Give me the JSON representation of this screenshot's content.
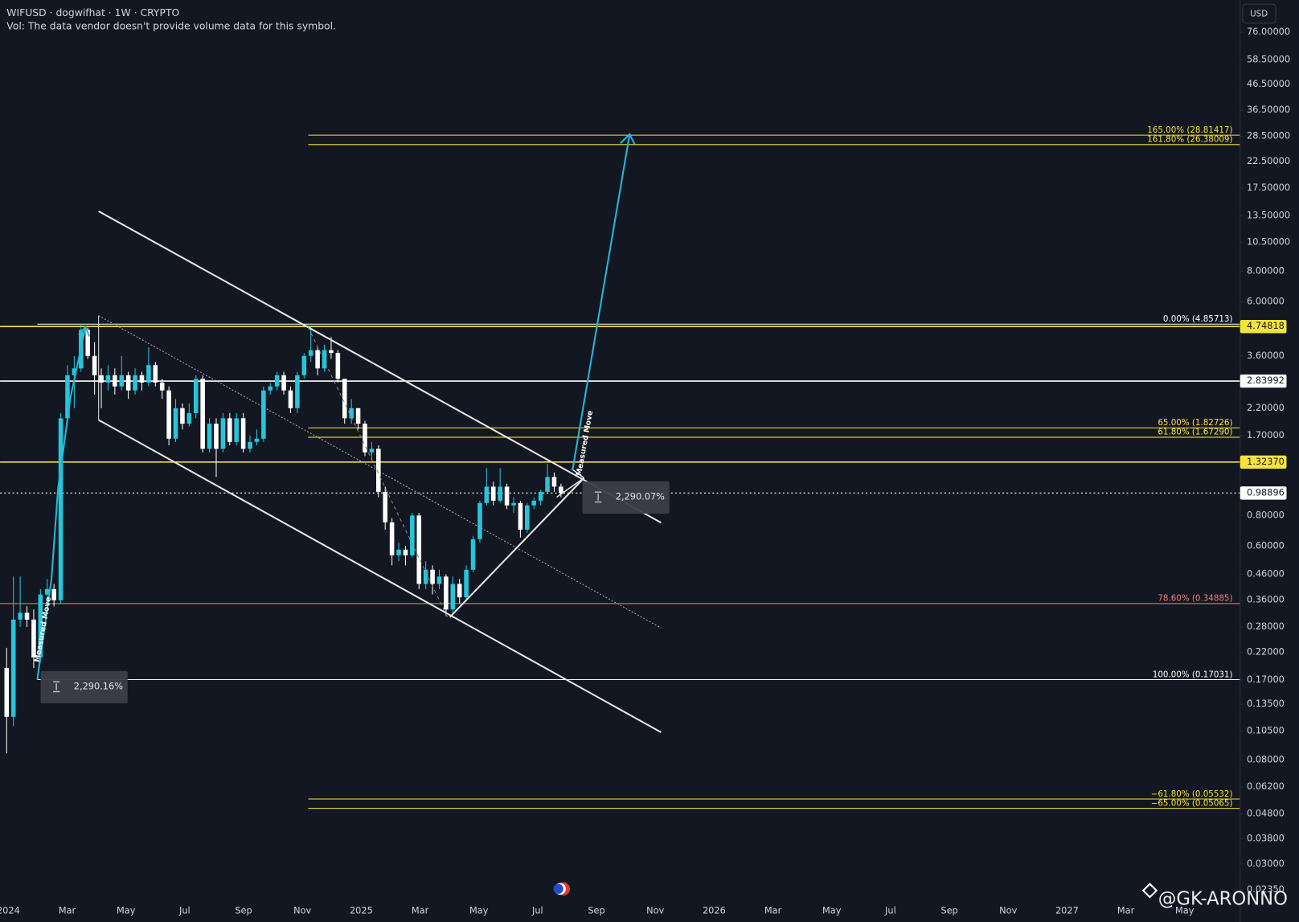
{
  "header": {
    "symbol_line": "WIFUSD · dogwifhat · 1W · CRYPTO",
    "volume_note": "Vol: The data vendor doesn't provide volume data for this symbol.",
    "currency": "USD",
    "watermark": "@GK-ARONNO"
  },
  "chart_data": {
    "type": "candlestick",
    "log_scale": true,
    "up_color": "#26c6da",
    "down_color": "#ffffff",
    "open": [
      0.19,
      0.12,
      0.3,
      0.32,
      0.3,
      0.21,
      0.38,
      0.4,
      0.36,
      2.0,
      3.0,
      3.2,
      4.6,
      3.6,
      3.0,
      2.8,
      3.0,
      2.7,
      3.0,
      2.6,
      3.0,
      2.8,
      3.3,
      2.8,
      2.6,
      1.65,
      2.2,
      1.9,
      2.1,
      2.9,
      1.5,
      1.9,
      1.5,
      2.0,
      1.6,
      2.0,
      1.5,
      1.6,
      1.65,
      2.6,
      2.7,
      3.0,
      2.6,
      2.2,
      3.0,
      3.6,
      3.8,
      3.2,
      3.8,
      3.7,
      2.9,
      2.0,
      2.2,
      1.9,
      1.45,
      1.5,
      1.0,
      0.75,
      0.55,
      0.58,
      0.55,
      0.8,
      0.42,
      0.48,
      0.42,
      0.45,
      0.33,
      0.42,
      0.37,
      0.48,
      0.64,
      0.9,
      1.05,
      0.92,
      1.05,
      0.88,
      0.9,
      0.7,
      0.88,
      0.92,
      1.0,
      1.15,
      1.05
    ],
    "high": [
      0.23,
      0.45,
      0.45,
      0.34,
      0.33,
      0.4,
      0.44,
      0.42,
      2.1,
      3.3,
      3.6,
      4.86,
      4.7,
      4.1,
      3.2,
      3.3,
      3.2,
      3.6,
      3.1,
      3.2,
      3.1,
      3.9,
      3.4,
      2.9,
      2.7,
      2.4,
      2.3,
      2.3,
      3.0,
      3.0,
      2.0,
      2.0,
      2.1,
      2.1,
      2.1,
      2.1,
      1.7,
      1.8,
      2.7,
      2.8,
      3.1,
      3.1,
      2.7,
      3.1,
      3.7,
      4.75,
      3.9,
      4.0,
      4.3,
      3.8,
      2.9,
      2.4,
      2.2,
      1.95,
      1.6,
      1.55,
      1.05,
      0.78,
      0.62,
      0.6,
      0.82,
      0.82,
      0.52,
      0.5,
      0.48,
      0.46,
      0.45,
      0.44,
      0.5,
      0.66,
      0.92,
      1.25,
      1.1,
      1.25,
      1.08,
      0.95,
      0.92,
      0.9,
      0.95,
      1.02,
      1.3,
      1.2,
      1.08
    ],
    "low": [
      0.085,
      0.11,
      0.28,
      0.28,
      0.19,
      0.2,
      0.36,
      0.34,
      0.35,
      1.9,
      2.2,
      3.1,
      3.5,
      2.5,
      2.2,
      2.6,
      2.5,
      2.6,
      2.4,
      2.5,
      2.6,
      2.7,
      2.7,
      2.4,
      1.55,
      1.6,
      1.8,
      1.85,
      2.0,
      1.45,
      1.45,
      1.15,
      1.45,
      1.55,
      1.55,
      1.45,
      1.45,
      1.55,
      1.6,
      2.5,
      2.6,
      2.5,
      2.1,
      2.1,
      2.9,
      3.4,
      3.0,
      3.1,
      3.5,
      2.8,
      1.9,
      1.9,
      1.8,
      1.4,
      1.35,
      0.95,
      0.7,
      0.5,
      0.52,
      0.5,
      0.54,
      0.4,
      0.4,
      0.38,
      0.4,
      0.31,
      0.32,
      0.35,
      0.36,
      0.47,
      0.62,
      0.88,
      0.88,
      0.9,
      0.85,
      0.82,
      0.65,
      0.68,
      0.85,
      0.88,
      0.98,
      1.0,
      0.95
    ],
    "close": [
      0.12,
      0.3,
      0.32,
      0.3,
      0.21,
      0.38,
      0.4,
      0.36,
      2.0,
      3.0,
      3.2,
      4.6,
      3.6,
      3.0,
      2.8,
      3.0,
      2.7,
      3.0,
      2.6,
      3.0,
      2.8,
      3.3,
      2.8,
      2.6,
      1.65,
      2.2,
      1.9,
      2.1,
      2.9,
      1.5,
      1.9,
      1.5,
      2.0,
      1.6,
      2.0,
      1.5,
      1.6,
      1.65,
      2.6,
      2.7,
      3.0,
      2.6,
      2.2,
      3.0,
      3.6,
      3.8,
      3.2,
      3.8,
      3.7,
      2.9,
      2.0,
      2.2,
      1.9,
      1.45,
      1.5,
      1.0,
      0.75,
      0.55,
      0.58,
      0.55,
      0.8,
      0.42,
      0.48,
      0.42,
      0.45,
      0.33,
      0.42,
      0.37,
      0.48,
      0.64,
      0.9,
      1.05,
      0.92,
      1.05,
      0.88,
      0.9,
      0.7,
      0.88,
      0.92,
      1.0,
      1.15,
      1.05,
      0.99
    ],
    "ylim": [
      0.0216,
      103
    ],
    "yticks": [
      {
        "value": 76,
        "label": "76.00000"
      },
      {
        "value": 58.5,
        "label": "58.50000"
      },
      {
        "value": 46.5,
        "label": "46.50000"
      },
      {
        "value": 36.5,
        "label": "36.50000"
      },
      {
        "value": 28.5,
        "label": "28.50000"
      },
      {
        "value": 22.5,
        "label": "22.50000"
      },
      {
        "value": 17.5,
        "label": "17.50000"
      },
      {
        "value": 13.5,
        "label": "13.50000"
      },
      {
        "value": 10.5,
        "label": "10.50000"
      },
      {
        "value": 8,
        "label": "8.00000"
      },
      {
        "value": 6,
        "label": "6.00000"
      },
      {
        "value": 3.6,
        "label": "3.60000"
      },
      {
        "value": 2.2,
        "label": "2.20000"
      },
      {
        "value": 1.7,
        "label": "1.70000"
      },
      {
        "value": 0.8,
        "label": "0.80000"
      },
      {
        "value": 0.6,
        "label": "0.60000"
      },
      {
        "value": 0.46,
        "label": "0.46000"
      },
      {
        "value": 0.36,
        "label": "0.36000"
      },
      {
        "value": 0.28,
        "label": "0.28000"
      },
      {
        "value": 0.22,
        "label": "0.22000"
      },
      {
        "value": 0.17,
        "label": "0.17000"
      },
      {
        "value": 0.135,
        "label": "0.13500"
      },
      {
        "value": 0.105,
        "label": "0.10500"
      },
      {
        "value": 0.08,
        "label": "0.08000"
      },
      {
        "value": 0.062,
        "label": "0.06200"
      },
      {
        "value": 0.048,
        "label": "0.04800"
      },
      {
        "value": 0.038,
        "label": "0.03800"
      },
      {
        "value": 0.03,
        "label": "0.03000"
      },
      {
        "value": 0.0235,
        "label": "0.02350"
      }
    ],
    "xticks": [
      {
        "value": "2024-01",
        "label": "2024"
      },
      {
        "value": "2024-03",
        "label": "Mar"
      },
      {
        "value": "2024-05",
        "label": "May"
      },
      {
        "value": "2024-07",
        "label": "Jul"
      },
      {
        "value": "2024-09",
        "label": "Sep"
      },
      {
        "value": "2024-11",
        "label": "Nov"
      },
      {
        "value": "2025-01",
        "label": "2025"
      },
      {
        "value": "2025-03",
        "label": "Mar"
      },
      {
        "value": "2025-05",
        "label": "May"
      },
      {
        "value": "2025-07",
        "label": "Jul"
      },
      {
        "value": "2025-09",
        "label": "Sep"
      },
      {
        "value": "2025-11",
        "label": "Nov"
      },
      {
        "value": "2026-01",
        "label": "2026"
      },
      {
        "value": "2026-03",
        "label": "Mar"
      },
      {
        "value": "2026-05",
        "label": "May"
      },
      {
        "value": "2026-07",
        "label": "Jul"
      },
      {
        "value": "2026-09",
        "label": "Sep"
      },
      {
        "value": "2026-11",
        "label": "Nov"
      },
      {
        "value": "2027-01",
        "label": "2027"
      },
      {
        "value": "2027-03",
        "label": "Mar"
      },
      {
        "value": "2027-05",
        "label": "May"
      }
    ],
    "price_lines": [
      {
        "label": "4.74818",
        "value": 4.74818,
        "color": "#f5e33b",
        "line_style": "solid"
      },
      {
        "label": "2.83992",
        "value": 2.83992,
        "color": "#ffffff",
        "line_style": "solid"
      },
      {
        "label": "1.32370",
        "value": 1.3237,
        "color": "#f5e33b",
        "line_style": "solid"
      },
      {
        "label": "0.98896",
        "value": 0.98896,
        "color": "#ffffff",
        "line_style": "dotted"
      }
    ],
    "fib_levels": [
      {
        "label": "165.00% (28.81417)",
        "price": 28.81417,
        "color": "#f5e33b"
      },
      {
        "label": "161.80% (26.38009)",
        "price": 26.38009,
        "color": "#f5e33b"
      },
      {
        "label": "0.00% (4.85713)",
        "price": 4.85713,
        "color": "#ffffff"
      },
      {
        "label": "65.00% (1.82726)",
        "price": 1.82726,
        "color": "#f5e33b"
      },
      {
        "label": "61.80% (1.67290)",
        "price": 1.6729,
        "color": "#f5e33b"
      },
      {
        "label": "78.60% (0.34885)",
        "price": 0.34885,
        "color": "#f77c80"
      },
      {
        "label": "100.00% (0.17031)",
        "price": 0.17031,
        "color": "#ffffff"
      },
      {
        "label": "−61.80% (0.05532)",
        "price": 0.05532,
        "color": "#f5e33b"
      },
      {
        "label": "−65.00% (0.05065)",
        "price": 0.05065,
        "color": "#f5e33b"
      }
    ],
    "measurements": [
      "2,290.16%",
      "2,290.07%"
    ],
    "annotations": [
      "Measured Move",
      "Measured Move"
    ]
  }
}
